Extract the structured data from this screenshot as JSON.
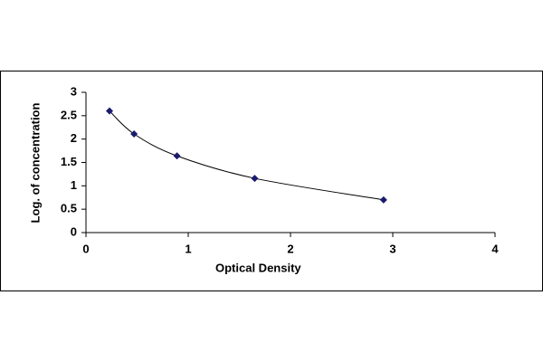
{
  "chart_data": {
    "type": "scatter",
    "xlabel": "Optical Density",
    "ylabel": "Log. of concentration",
    "x": [
      0.23,
      0.47,
      0.89,
      1.65,
      2.91
    ],
    "values": [
      2.6,
      2.11,
      1.64,
      1.16,
      0.7
    ],
    "color": "#1a1a6e",
    "line_color": "#000000",
    "smooth_line": true,
    "xlim": [
      0,
      4
    ],
    "xticks": [
      0,
      1,
      2,
      3,
      4
    ],
    "ylim": [
      0,
      3
    ],
    "yticks": [
      0,
      0.5,
      1,
      1.5,
      2,
      2.5,
      3
    ],
    "grid": false
  }
}
